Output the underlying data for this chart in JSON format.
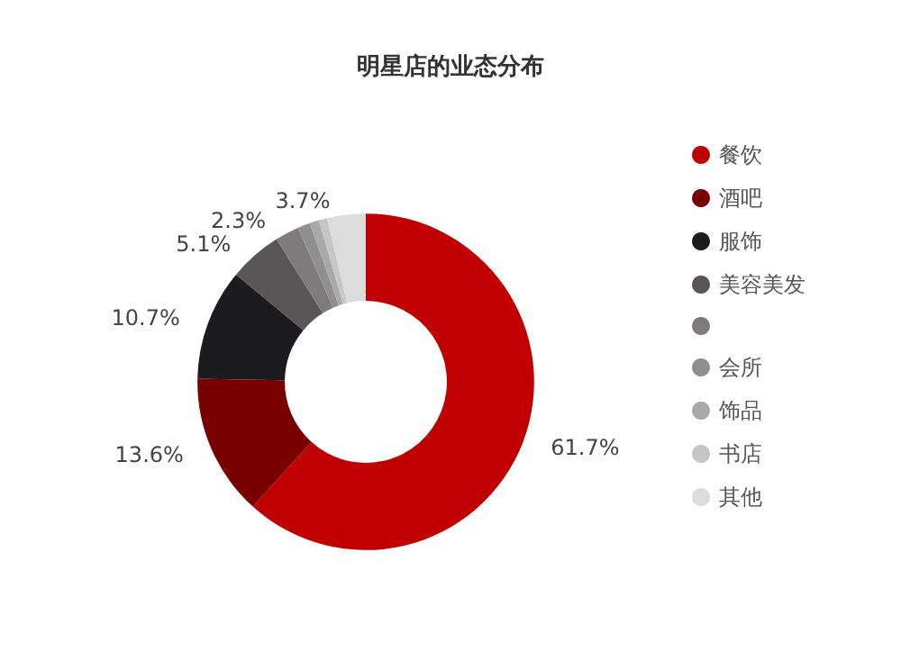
{
  "chart_data": {
    "type": "donut",
    "title": "明星店的业态分布",
    "categories": [
      "餐饮",
      "酒吧",
      "服饰",
      "美容美发",
      null,
      "会所",
      "饰品",
      "书店",
      "其他"
    ],
    "values": [
      61.7,
      13.6,
      10.7,
      5.1,
      2.3,
      1.2,
      0.9,
      0.8,
      3.7
    ],
    "value_labels": [
      "61.7%",
      "13.6%",
      "10.7%",
      "5.1%",
      "2.3%",
      null,
      null,
      null,
      "3.7%"
    ],
    "colors": [
      "#c00000",
      "#7a0000",
      "#1c1c20",
      "#5a5657",
      "#7d7b7c",
      "#8f8f8f",
      "#a9a9a9",
      "#c6c6c6",
      "#dcdcdc"
    ],
    "legend": "right"
  }
}
